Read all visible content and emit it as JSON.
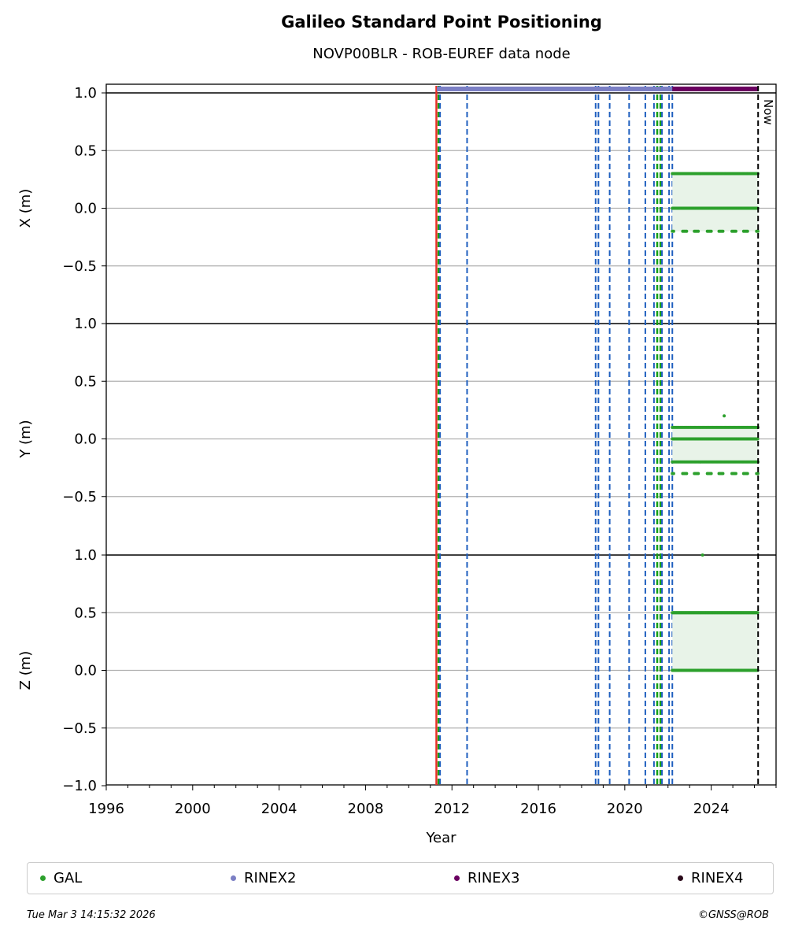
{
  "title": "Galileo Standard Point Positioning",
  "subtitle": "NOVP00BLR - ROB-EUREF data node",
  "legend": [
    {
      "label": "GAL",
      "color": "#2ca02c"
    },
    {
      "label": "RINEX2",
      "color": "#7b7fc4"
    },
    {
      "label": "RINEX3",
      "color": "#6a0060"
    },
    {
      "label": "RINEX4",
      "color": "#2a0a1a"
    }
  ],
  "footer": {
    "timestamp": "Tue Mar  3 14:15:32 2026",
    "copyright": "©GNSS@ROB"
  },
  "chart_data": {
    "type": "scatter",
    "xlabel": "Year",
    "xlim": [
      1996,
      2027
    ],
    "x_ticks": [
      1996,
      2000,
      2004,
      2008,
      2012,
      2016,
      2020,
      2024
    ],
    "y_tick_labels": [
      "1.0",
      "0.5",
      "0.0",
      "−0.5",
      "−1.0"
    ],
    "now_label": "Now",
    "now_year": 2026.17,
    "panels": [
      {
        "ylabel": "X (m)",
        "ylim": [
          -1,
          1
        ],
        "levels": [
          0.3,
          0.0,
          -0.2
        ]
      },
      {
        "ylabel": "Y (m)",
        "ylim": [
          -1,
          1
        ],
        "levels": [
          0.1,
          0.0,
          -0.2,
          -0.3
        ],
        "outliers": [
          [
            2024.6,
            0.2
          ]
        ]
      },
      {
        "ylabel": "Z (m)",
        "ylim": [
          -1,
          1
        ],
        "levels": [
          0.5,
          0.0
        ],
        "outliers": [
          [
            2023.6,
            1.0
          ]
        ]
      }
    ],
    "gal_series": {
      "start": 2022.2,
      "end": 2026.17
    },
    "rinex2_span": [
      2011.3,
      2022.2
    ],
    "rinex3_span": [
      2022.2,
      2026.17
    ],
    "event_lines": {
      "red": [
        2011.28
      ],
      "green": [
        2011.38,
        2021.5,
        2021.65
      ],
      "blue": [
        2011.45,
        2012.7,
        2018.65,
        2018.78,
        2019.3,
        2020.2,
        2020.95,
        2021.35,
        2021.72,
        2022.05,
        2022.2
      ]
    }
  }
}
